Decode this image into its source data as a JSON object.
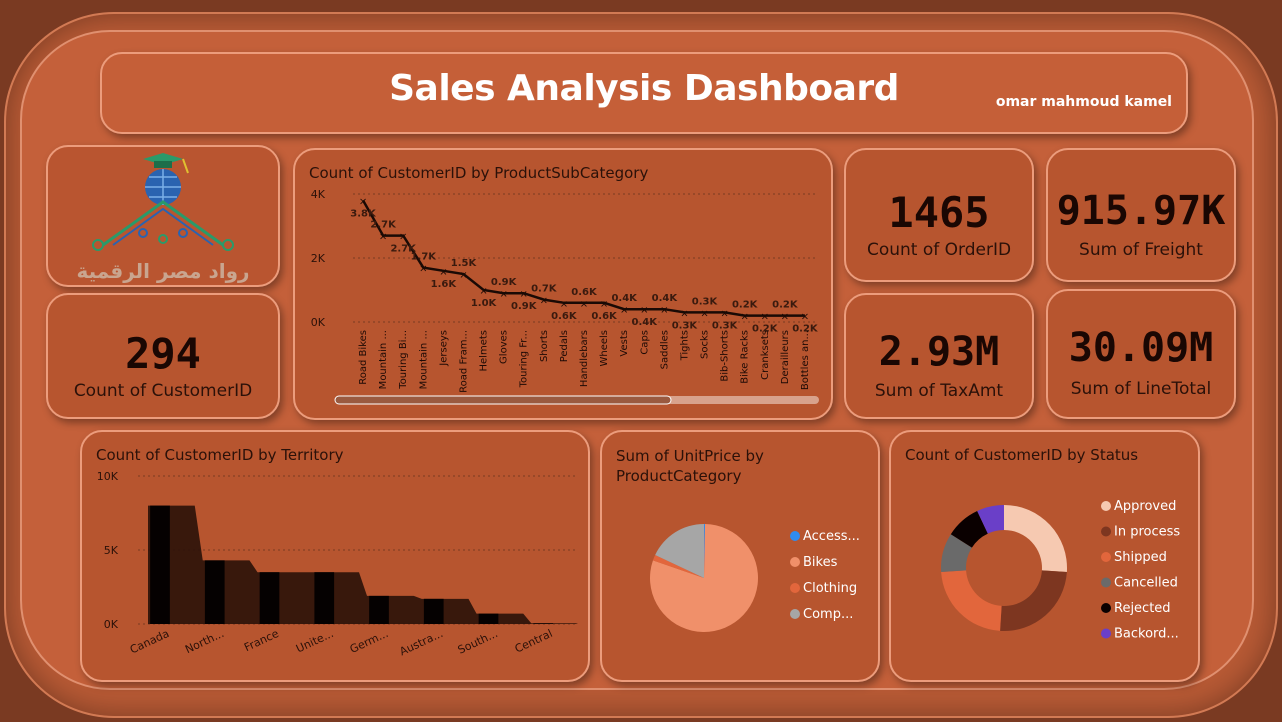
{
  "header": {
    "title": "Sales Analysis Dashboard",
    "author": "omar mahmoud kamel"
  },
  "logo": {
    "text": "رواد مصر الرقمية"
  },
  "kpis": {
    "customers": {
      "value": "294",
      "label": "Count of CustomerID"
    },
    "orders": {
      "value": "1465",
      "label": "Count of OrderID"
    },
    "freight": {
      "value": "915.97K",
      "label": "Sum of Freight"
    },
    "tax": {
      "value": "2.93M",
      "label": "Sum of TaxAmt"
    },
    "linetotal": {
      "value": "30.09M",
      "label": "Sum of LineTotal"
    }
  },
  "colors": {
    "line": "#1a0a05",
    "bars": "#050101",
    "area": "#2a1209"
  },
  "chart_data": [
    {
      "type": "line",
      "title": "Count of CustomerID by ProductSubCategory",
      "categories": [
        "Road Bikes",
        "Mountain ...",
        "Touring Bi...",
        "Mountain ...",
        "Jerseys",
        "Road Fram...",
        "Helmets",
        "Gloves",
        "Touring Fr...",
        "Shorts",
        "Pedals",
        "Handlebars",
        "Wheels",
        "Vests",
        "Caps",
        "Saddles",
        "Tights",
        "Socks",
        "Bib-Shorts",
        "Bike Racks",
        "Cranksets",
        "Derailleurs",
        "Bottles an..."
      ],
      "values": [
        3800,
        2700,
        2700,
        1700,
        1600,
        1500,
        1000,
        900,
        900,
        700,
        600,
        600,
        600,
        400,
        400,
        400,
        300,
        300,
        300,
        200,
        200,
        200,
        200
      ],
      "labels": [
        "3.8K",
        "2.7K",
        "2.7K",
        "1.7K",
        "1.6K",
        "1.5K",
        "1.0K",
        "0.9K",
        "0.9K",
        "0.7K",
        "0.6K",
        "0.6K",
        "0.6K",
        "0.4K",
        "0.4K",
        "0.4K",
        "0.3K",
        "0.3K",
        "0.3K",
        "0.2K",
        "0.2K",
        "0.2K",
        "0.2K"
      ],
      "yticks": [
        "0K",
        "2K",
        "4K"
      ],
      "ylim": [
        0,
        4000
      ]
    },
    {
      "type": "bar",
      "title": "Count of CustomerID by Territory",
      "categories": [
        "Canada",
        "North...",
        "France",
        "Unite...",
        "Germ...",
        "Austra...",
        "South...",
        "Central"
      ],
      "values": [
        8000,
        4300,
        3500,
        3500,
        1900,
        1700,
        700,
        50
      ],
      "yticks": [
        "0K",
        "5K",
        "10K"
      ],
      "ylim": [
        0,
        10000
      ]
    },
    {
      "type": "pie",
      "title": "Sum of UnitPrice by ProductCategory",
      "categories": [
        "Access...",
        "Bikes",
        "Clothing",
        "Comp..."
      ],
      "values": [
        0.3,
        80,
        1.7,
        18
      ],
      "colors": [
        "#2f8cf0",
        "#f0906a",
        "#e2663c",
        "#a6a6a6"
      ]
    },
    {
      "type": "pie",
      "title": "Count of CustomerID by Status",
      "categories": [
        "Approved",
        "In process",
        "Shipped",
        "Cancelled",
        "Rejected",
        "Backord..."
      ],
      "values": [
        26,
        25,
        23,
        10,
        9,
        7
      ],
      "colors": [
        "#f6c9b1",
        "#7d3620",
        "#e2663c",
        "#6a6a6a",
        "#0a0000",
        "#6a3fc8"
      ]
    }
  ]
}
